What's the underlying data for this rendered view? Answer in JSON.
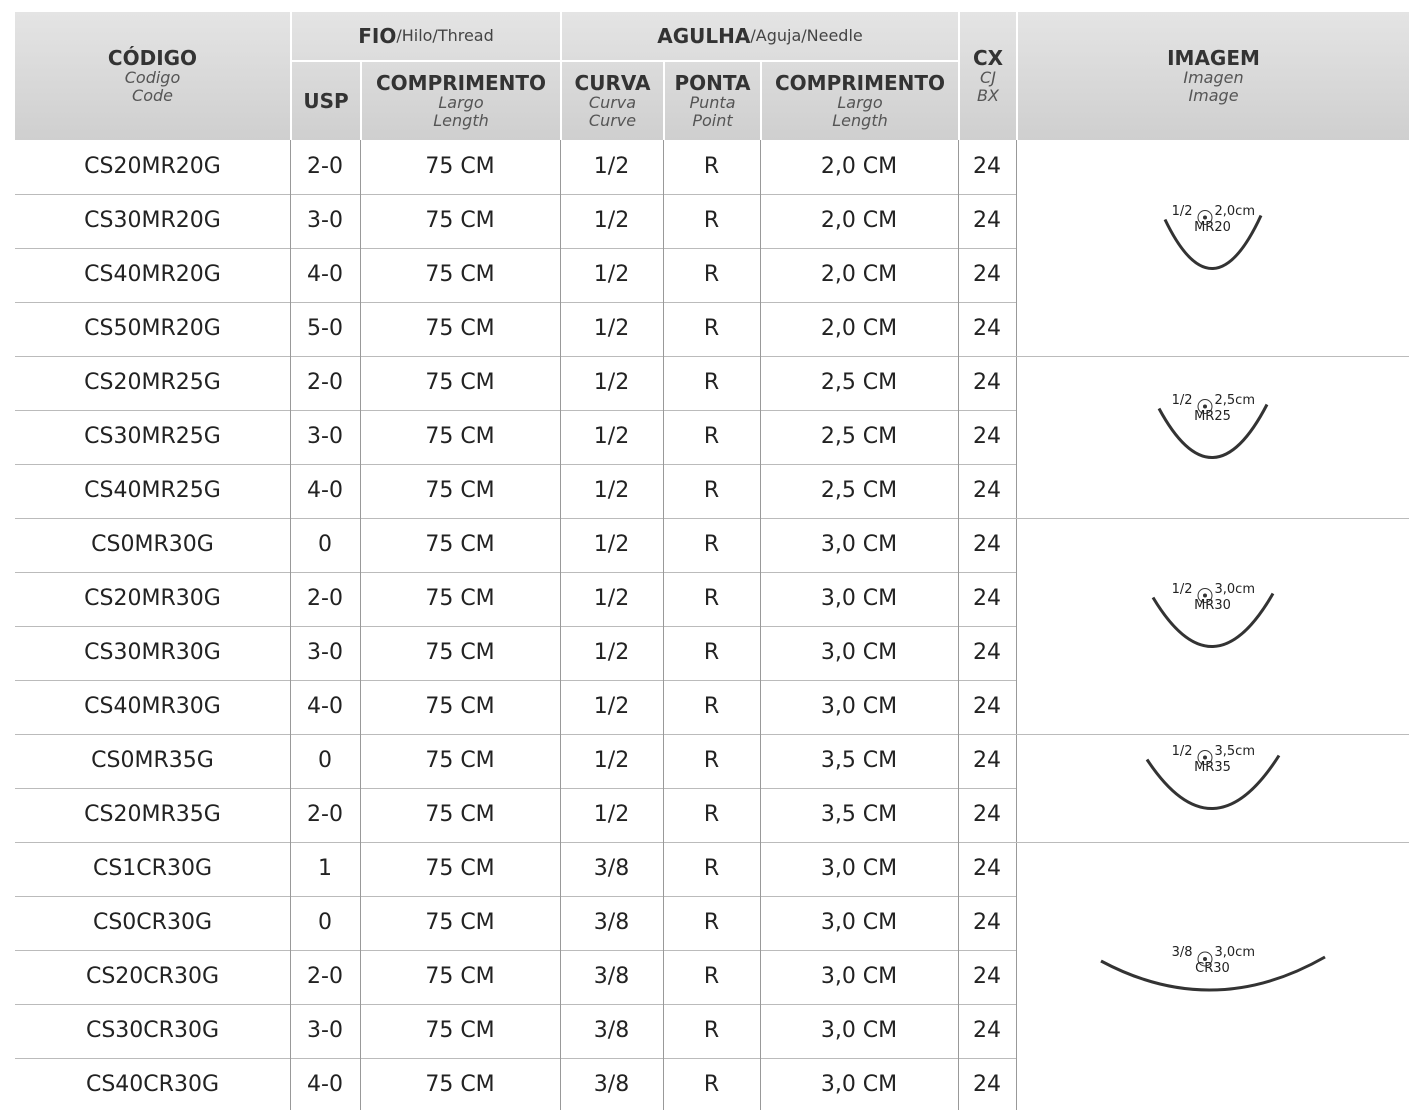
{
  "header": {
    "codigo": [
      "CÓDIGO",
      "Codigo",
      "Code"
    ],
    "fio": [
      "FIO",
      "/Hilo/Thread"
    ],
    "usp": "USP",
    "comp1": [
      "COMPRIMENTO",
      "Largo",
      "Length"
    ],
    "agulha": [
      "AGULHA",
      "/Aguja/Needle"
    ],
    "curva": [
      "CURVA",
      "Curva",
      "Curve"
    ],
    "ponta": [
      "PONTA",
      "Punta",
      "Point"
    ],
    "comp2": [
      "COMPRIMENTO",
      "Largo",
      "Length"
    ],
    "cx": [
      "CX",
      "CJ",
      "BX"
    ],
    "imagem": [
      "IMAGEM",
      "Imagen",
      "Image"
    ]
  },
  "rows": [
    [
      "CS20MR20G",
      "2-0",
      "75 CM",
      "1/2",
      "R",
      "2,0 CM",
      "24"
    ],
    [
      "CS30MR20G",
      "3-0",
      "75 CM",
      "1/2",
      "R",
      "2,0 CM",
      "24"
    ],
    [
      "CS40MR20G",
      "4-0",
      "75 CM",
      "1/2",
      "R",
      "2,0 CM",
      "24"
    ],
    [
      "CS50MR20G",
      "5-0",
      "75 CM",
      "1/2",
      "R",
      "2,0 CM",
      "24"
    ],
    [
      "CS20MR25G",
      "2-0",
      "75 CM",
      "1/2",
      "R",
      "2,5 CM",
      "24"
    ],
    [
      "CS30MR25G",
      "3-0",
      "75 CM",
      "1/2",
      "R",
      "2,5 CM",
      "24"
    ],
    [
      "CS40MR25G",
      "4-0",
      "75 CM",
      "1/2",
      "R",
      "2,5 CM",
      "24"
    ],
    [
      "CS0MR30G",
      "0",
      "75 CM",
      "1/2",
      "R",
      "3,0 CM",
      "24"
    ],
    [
      "CS20MR30G",
      "2-0",
      "75 CM",
      "1/2",
      "R",
      "3,0 CM",
      "24"
    ],
    [
      "CS30MR30G",
      "3-0",
      "75 CM",
      "1/2",
      "R",
      "3,0 CM",
      "24"
    ],
    [
      "CS40MR30G",
      "4-0",
      "75 CM",
      "1/2",
      "R",
      "3,0 CM",
      "24"
    ],
    [
      "CS0MR35G",
      "0",
      "75 CM",
      "1/2",
      "R",
      "3,5 CM",
      "24"
    ],
    [
      "CS20MR35G",
      "2-0",
      "75 CM",
      "1/2",
      "R",
      "3,5 CM",
      "24"
    ],
    [
      "CS1CR30G",
      "1",
      "75 CM",
      "3/8",
      "R",
      "3,0 CM",
      "24"
    ],
    [
      "CS0CR30G",
      "0",
      "75 CM",
      "3/8",
      "R",
      "3,0 CM",
      "24"
    ],
    [
      "CS20CR30G",
      "2-0",
      "75 CM",
      "3/8",
      "R",
      "3,0 CM",
      "24"
    ],
    [
      "CS30CR30G",
      "3-0",
      "75 CM",
      "3/8",
      "R",
      "3,0 CM",
      "24"
    ],
    [
      "CS40CR30G",
      "4-0",
      "75 CM",
      "3/8",
      "R",
      "3,0 CM",
      "24"
    ]
  ],
  "images": [
    {
      "curve": "1/2",
      "size": "2,0cm",
      "model": "MR20"
    },
    {
      "curve": "1/2",
      "size": "2,5cm",
      "model": "MR25"
    },
    {
      "curve": "1/2",
      "size": "3,0cm",
      "model": "MR30"
    },
    {
      "curve": "1/2",
      "size": "3,5cm",
      "model": "MR35"
    },
    {
      "curve": "3/8",
      "size": "3,0cm",
      "model": "CR30"
    }
  ]
}
